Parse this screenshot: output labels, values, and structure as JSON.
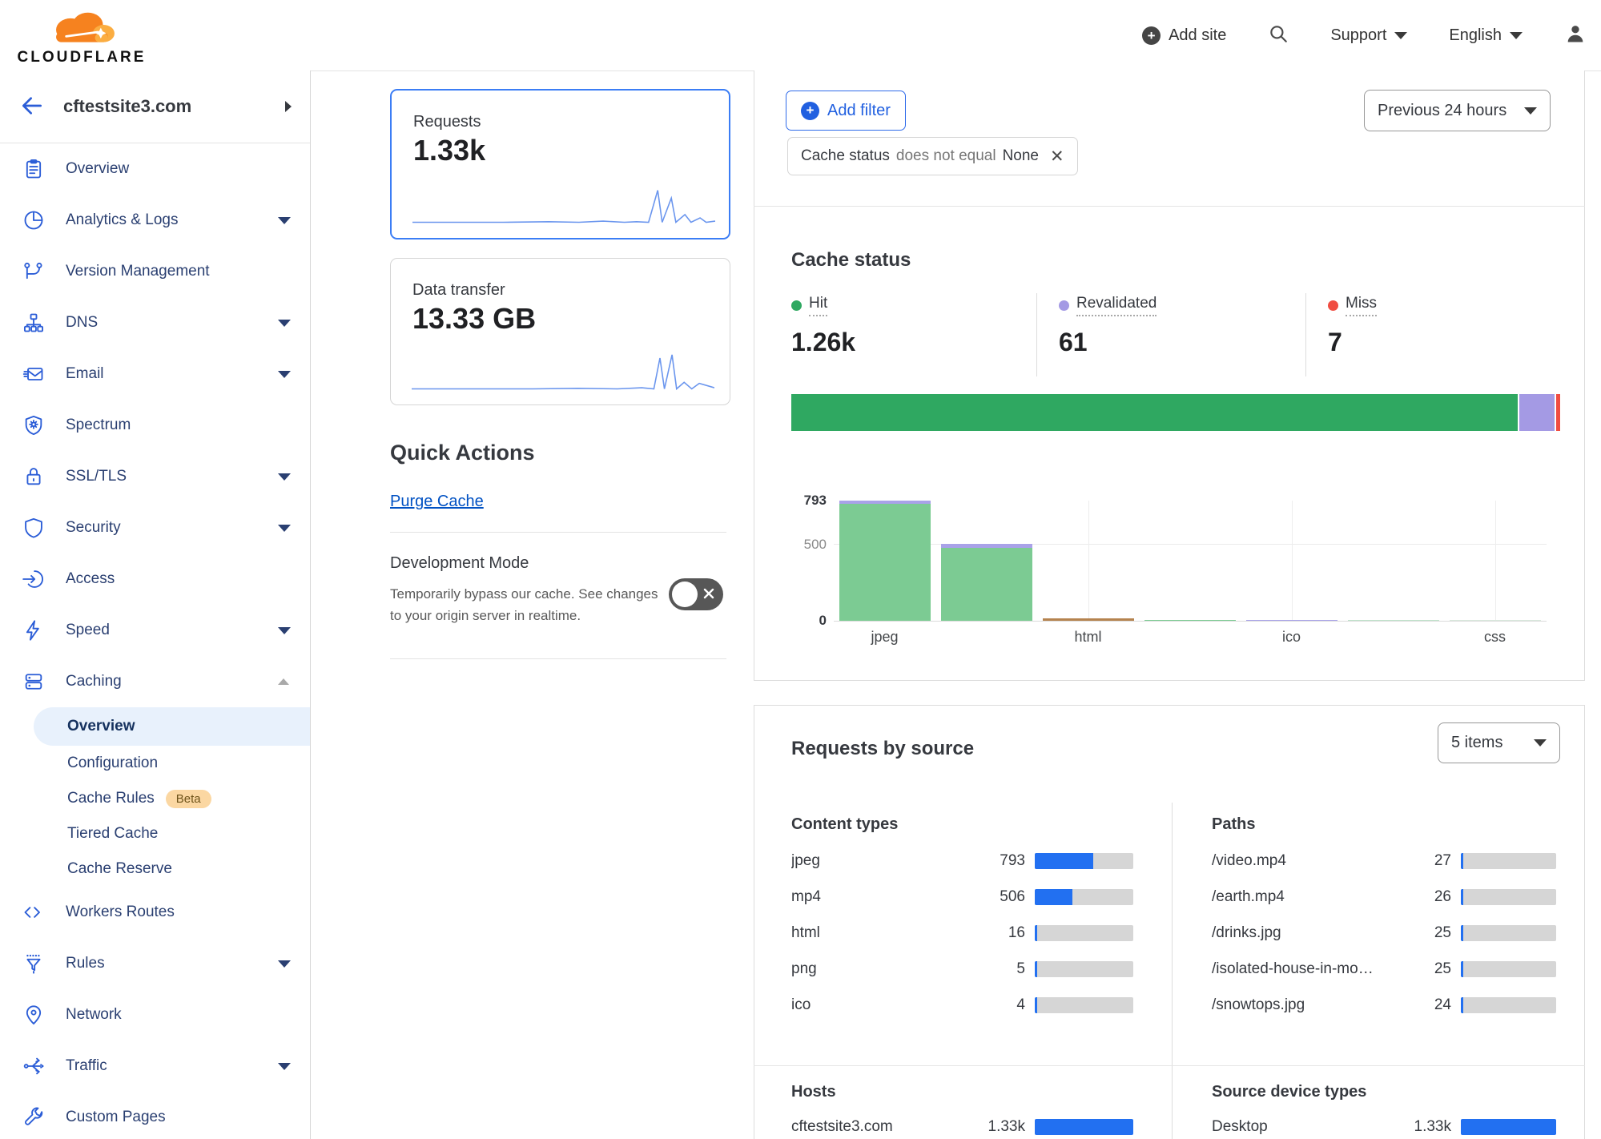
{
  "header": {
    "logo_text": "CLOUDFLARE",
    "add_site": "Add site",
    "support": "Support",
    "language": "English"
  },
  "sidebar": {
    "site": "cftestsite3.com",
    "items": [
      {
        "label": "Overview",
        "icon": "clipboard-icon"
      },
      {
        "label": "Analytics & Logs",
        "icon": "pie-chart-icon",
        "chevron": "down"
      },
      {
        "label": "Version Management",
        "icon": "branch-icon"
      },
      {
        "label": "DNS",
        "icon": "sitemap-icon",
        "chevron": "down"
      },
      {
        "label": "Email",
        "icon": "email-icon",
        "chevron": "down"
      },
      {
        "label": "Spectrum",
        "icon": "shield-sun-icon"
      },
      {
        "label": "SSL/TLS",
        "icon": "padlock-icon",
        "chevron": "down"
      },
      {
        "label": "Security",
        "icon": "shield-icon",
        "chevron": "down"
      },
      {
        "label": "Access",
        "icon": "login-arrow-icon"
      },
      {
        "label": "Speed",
        "icon": "lightning-icon",
        "chevron": "down"
      },
      {
        "label": "Caching",
        "icon": "server-stack-icon",
        "chevron": "up",
        "children": [
          {
            "label": "Overview",
            "active": true
          },
          {
            "label": "Configuration"
          },
          {
            "label": "Cache Rules",
            "badge": "Beta"
          },
          {
            "label": "Tiered Cache"
          },
          {
            "label": "Cache Reserve"
          }
        ]
      },
      {
        "label": "Workers Routes",
        "icon": "code-icon"
      },
      {
        "label": "Rules",
        "icon": "funnel-icon",
        "chevron": "down"
      },
      {
        "label": "Network",
        "icon": "location-pin-icon"
      },
      {
        "label": "Traffic",
        "icon": "share-nodes-icon",
        "chevron": "down"
      },
      {
        "label": "Custom Pages",
        "icon": "wrench-icon"
      }
    ]
  },
  "stat_cards": {
    "requests": {
      "title": "Requests",
      "value": "1.33k"
    },
    "data_transfer": {
      "title": "Data transfer",
      "value": "13.33 GB"
    }
  },
  "quick_actions": {
    "title": "Quick Actions",
    "purge_label": "Purge Cache",
    "dev_mode": {
      "title": "Development Mode",
      "description": "Temporarily bypass our cache. See changes to your origin server in realtime.",
      "toggle_state": "off"
    }
  },
  "filters": {
    "add_filter": "Add filter",
    "chip": {
      "field": "Cache status",
      "operator": "does not equal",
      "value": "None"
    },
    "time_range": "Previous 24 hours"
  },
  "cache_status": {
    "title": "Cache status",
    "legend": [
      {
        "label": "Hit",
        "value": "1.26k",
        "color": "#2fa861"
      },
      {
        "label": "Revalidated",
        "value": "61",
        "color": "#a49ae4"
      },
      {
        "label": "Miss",
        "value": "7",
        "color": "#f04d42"
      }
    ]
  },
  "requests_by_source": {
    "title": "Requests by source",
    "items_select": "5 items",
    "scale_max": 1330,
    "panels": {
      "content_types": {
        "heading": "Content types",
        "rows": [
          {
            "label": "jpeg",
            "display": "793",
            "value": 793
          },
          {
            "label": "mp4",
            "display": "506",
            "value": 506
          },
          {
            "label": "html",
            "display": "16",
            "value": 16
          },
          {
            "label": "png",
            "display": "5",
            "value": 5
          },
          {
            "label": "ico",
            "display": "4",
            "value": 4
          }
        ]
      },
      "paths": {
        "heading": "Paths",
        "rows": [
          {
            "label": "/video.mp4",
            "display": "27",
            "value": 27
          },
          {
            "label": "/earth.mp4",
            "display": "26",
            "value": 26
          },
          {
            "label": "/drinks.jpg",
            "display": "25",
            "value": 25
          },
          {
            "label": "/isolated-house-in-mo…",
            "display": "25",
            "value": 25
          },
          {
            "label": "/snowtops.jpg",
            "display": "24",
            "value": 24
          }
        ]
      },
      "hosts": {
        "heading": "Hosts",
        "rows": [
          {
            "label": "cftestsite3.com",
            "display": "1.33k",
            "value": 1330
          }
        ]
      },
      "devices": {
        "heading": "Source device types",
        "rows": [
          {
            "label": "Desktop",
            "display": "1.33k",
            "value": 1330
          }
        ]
      }
    }
  },
  "chart_data": [
    {
      "id": "requests_sparkline",
      "type": "line",
      "color": "#6b96ee",
      "points": [
        [
          0,
          36
        ],
        [
          30,
          36
        ],
        [
          45,
          35.5
        ],
        [
          55,
          36
        ],
        [
          63,
          35
        ],
        [
          70,
          36
        ],
        [
          74,
          35.5
        ],
        [
          78,
          36
        ],
        [
          81,
          7
        ],
        [
          82.5,
          36
        ],
        [
          85.5,
          14
        ],
        [
          87,
          36
        ],
        [
          90,
          29
        ],
        [
          92,
          36
        ],
        [
          95,
          32
        ],
        [
          97,
          36
        ],
        [
          100,
          35
        ]
      ]
    },
    {
      "id": "transfer_sparkline",
      "type": "line",
      "color": "#6b96ee",
      "points": [
        [
          0,
          36
        ],
        [
          40,
          36
        ],
        [
          55,
          35.5
        ],
        [
          68,
          36
        ],
        [
          76,
          35
        ],
        [
          80,
          36
        ],
        [
          82,
          8
        ],
        [
          83.5,
          36
        ],
        [
          86,
          5
        ],
        [
          87.5,
          36
        ],
        [
          90,
          30
        ],
        [
          92.5,
          36
        ],
        [
          95,
          31
        ],
        [
          100,
          35
        ]
      ]
    },
    {
      "id": "cache_status_distribution",
      "type": "stacked-bar",
      "segments": [
        {
          "label": "Hit",
          "value": 1260,
          "color": "#2fa861"
        },
        {
          "label": "Revalidated",
          "value": 61,
          "color": "#a49ae4"
        },
        {
          "label": "Miss",
          "value": 7,
          "color": "#f04d42"
        }
      ]
    },
    {
      "id": "cache_status_by_content_type",
      "type": "bar",
      "stacked": true,
      "ylim": [
        0,
        793
      ],
      "yticks": [
        0,
        500,
        793
      ],
      "x_labels": [
        "jpeg",
        "",
        "html",
        "",
        "ico",
        "",
        "css"
      ],
      "gridline_slots": [
        2,
        4,
        6
      ],
      "bars": [
        {
          "segments": [
            {
              "status": "hit",
              "value": 770,
              "color": "#7ccb93"
            },
            {
              "status": "revalidated",
              "value": 23,
              "color": "#a9a2e8"
            }
          ]
        },
        {
          "segments": [
            {
              "status": "hit",
              "value": 480,
              "color": "#7ccb93"
            },
            {
              "status": "revalidated",
              "value": 26,
              "color": "#a9a2e8"
            }
          ]
        },
        {
          "segments": [
            {
              "status": "other",
              "value": 16,
              "color": "#b5834f"
            }
          ]
        },
        {
          "segments": [
            {
              "status": "hit",
              "value": 5,
              "color": "#7ccb93"
            }
          ]
        },
        {
          "segments": [
            {
              "status": "revalidated",
              "value": 4,
              "color": "#a9a2e8"
            }
          ]
        },
        {
          "segments": [
            {
              "status": "hit",
              "value": 2,
              "color": "#bfe3ca"
            }
          ]
        },
        {
          "segments": [
            {
              "status": "hit",
              "value": 1,
              "color": "#d9e8dd"
            }
          ]
        }
      ]
    }
  ]
}
